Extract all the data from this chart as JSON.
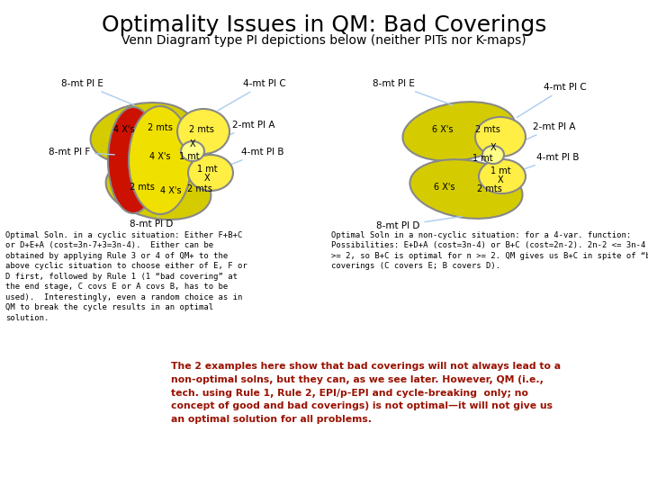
{
  "title": "Optimality Issues in QM: Bad Coverings",
  "subtitle": "Venn Diagram type PI depictions below (neither PITs nor K-maps)",
  "bg_color": "#ffffff",
  "arrow_color": "#aaccee",
  "bottom_text_left": "Optimal Soln. in a cyclic situation: Either F+B+C\nor D+E+A (cost=3n-7+3=3n-4).  Either can be\nobtained by applying Rule 3 or 4 of QM+ to the\nabove cyclic situation to choose either of E, F or\nD first, followed by Rule 1 (1 “bad covering” at\nthe end stage, C covs E or A covs B, has to be\nused).  Interestingly, even a random choice as in\nQM to break the cycle results in an optimal\nsolution.",
  "bottom_text_right": "Optimal Soln in a non-cyclic situation: for a 4-var. function:\nPossibilities: E+D+A (cost=3n-4) or B+C (cost=2n-2). 2n-2 <= 3n-4 → n\n>= 2, so B+C is optimal for n >= 2. QM gives us B+C in spite of “bad”\ncoverings (C covers E; B covers D).",
  "bottom_text_main": "The 2 examples here show that bad coverings will not always lead to a\nnon-optimal solns, but they can, as we see later. However, QM (i.e.,\ntech. using Rule 1, Rule 2, EPI/p-EPI and cycle-breaking  only; no\nconcept of good and bad coverings) is not optimal—it will not give us\nan optimal solution for all problems.",
  "col_yellow_dark": "#d4cc00",
  "col_yellow": "#f0e000",
  "col_yellow_bright": "#ffee44",
  "col_red": "#cc1100",
  "col_outline": "#888888"
}
